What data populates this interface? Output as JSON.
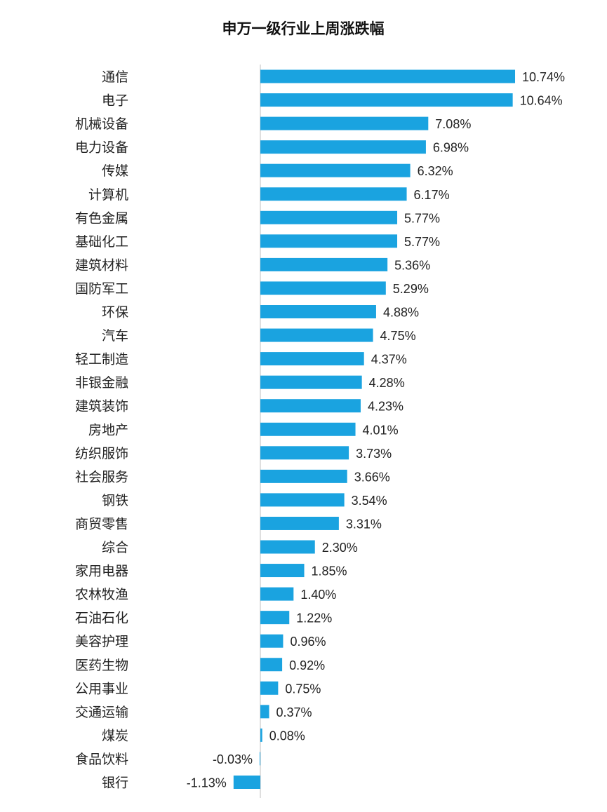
{
  "chart_data": {
    "type": "bar",
    "orientation": "horizontal",
    "title": "申万一级行业上周涨跌幅",
    "bar_color": "#1AA3E0",
    "categories": [
      "通信",
      "电子",
      "机械设备",
      "电力设备",
      "传媒",
      "计算机",
      "有色金属",
      "基础化工",
      "建筑材料",
      "国防军工",
      "环保",
      "汽车",
      "轻工制造",
      "非银金融",
      "建筑装饰",
      "房地产",
      "纺织服饰",
      "社会服务",
      "钢铁",
      "商贸零售",
      "综合",
      "家用电器",
      "农林牧渔",
      "石油石化",
      "美容护理",
      "医药生物",
      "公用事业",
      "交通运输",
      "煤炭",
      "食品饮料",
      "银行"
    ],
    "values": [
      10.74,
      10.64,
      7.08,
      6.98,
      6.32,
      6.17,
      5.77,
      5.77,
      5.36,
      5.29,
      4.88,
      4.75,
      4.37,
      4.28,
      4.23,
      4.01,
      3.73,
      3.66,
      3.54,
      3.31,
      2.3,
      1.85,
      1.4,
      1.22,
      0.96,
      0.92,
      0.75,
      0.37,
      0.08,
      -0.03,
      -1.13
    ],
    "value_labels": [
      "10.74%",
      "10.64%",
      "7.08%",
      "6.98%",
      "6.32%",
      "6.17%",
      "5.77%",
      "5.77%",
      "5.36%",
      "5.29%",
      "4.88%",
      "4.75%",
      "4.37%",
      "4.28%",
      "4.23%",
      "4.01%",
      "3.73%",
      "3.66%",
      "3.54%",
      "3.31%",
      "2.30%",
      "1.85%",
      "1.40%",
      "1.22%",
      "0.96%",
      "0.92%",
      "0.75%",
      "0.37%",
      "0.08%",
      "-0.03%",
      "-1.13%"
    ],
    "xlabel": "",
    "ylabel": "",
    "grid": false,
    "legend": false
  }
}
